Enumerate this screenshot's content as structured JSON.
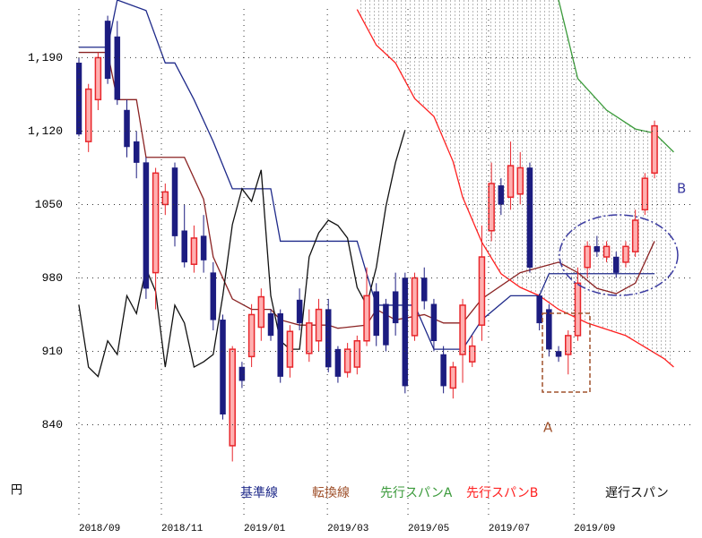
{
  "chart_data": {
    "type": "ichimoku",
    "y_unit": "円",
    "ylim": [
      767,
      1245
    ],
    "yticks": [
      840,
      910,
      980,
      1050,
      {
        "value": 1120,
        "label": "1,120"
      },
      {
        "value": 1190,
        "label": "1,190"
      }
    ],
    "xlim": [
      -0.28,
      64.2
    ],
    "xticks": [
      {
        "value": 0,
        "label": "2018/09"
      },
      {
        "value": 8.6,
        "label": "2018/11"
      },
      {
        "value": 17.2,
        "label": "2019/01"
      },
      {
        "value": 25.9,
        "label": "2019/03"
      },
      {
        "value": 34.3,
        "label": "2019/05"
      },
      {
        "value": 42.7,
        "label": "2019/07"
      },
      {
        "value": 51.6,
        "label": "2019/09"
      }
    ],
    "grid": true,
    "candles": {
      "up_color": "#e8262b",
      "down_color": "#1c1c80",
      "x": [
        0,
        1,
        2,
        3,
        4,
        5,
        6,
        7,
        8,
        9,
        10,
        11,
        12,
        13,
        14,
        15,
        16,
        17,
        18,
        19,
        20,
        21,
        22,
        23,
        24,
        25,
        26,
        27,
        28,
        29,
        30,
        31,
        32,
        33,
        34,
        35,
        36,
        37,
        38,
        39,
        40,
        41,
        42,
        43,
        44,
        45,
        46,
        47,
        48,
        49,
        50,
        51,
        52,
        53,
        54,
        55,
        56,
        57,
        58,
        59,
        60
      ],
      "open": [
        1185,
        1110,
        1150,
        1225,
        1210,
        1140,
        1110,
        1090,
        985,
        1050,
        1085,
        1025,
        993,
        1020,
        985,
        940,
        820,
        895,
        905,
        933,
        946,
        946,
        895,
        959,
        908,
        920,
        950,
        912,
        890,
        895,
        920,
        967,
        955,
        967,
        980,
        925,
        980,
        955,
        907,
        875,
        907,
        900,
        935,
        1025,
        1068,
        1057,
        1060,
        1085,
        963,
        950,
        910,
        907,
        925,
        990,
        1010,
        1000,
        1000,
        995,
        1005,
        1045,
        1080
      ],
      "high": [
        1190,
        1165,
        1195,
        1230,
        1225,
        1150,
        1120,
        1095,
        1085,
        1070,
        1090,
        1050,
        1030,
        1040,
        995,
        945,
        915,
        900,
        955,
        970,
        950,
        950,
        935,
        970,
        950,
        960,
        960,
        915,
        918,
        925,
        990,
        975,
        960,
        985,
        985,
        985,
        990,
        960,
        915,
        900,
        960,
        925,
        1030,
        1090,
        1075,
        1110,
        1100,
        1090,
        965,
        955,
        915,
        930,
        990,
        1015,
        1020,
        1015,
        1005,
        1015,
        1045,
        1080,
        1130
      ],
      "low": [
        1115,
        1100,
        1140,
        1165,
        1145,
        1095,
        1075,
        960,
        950,
        1040,
        1010,
        990,
        985,
        985,
        930,
        845,
        805,
        875,
        895,
        920,
        920,
        880,
        885,
        930,
        900,
        910,
        890,
        880,
        885,
        888,
        915,
        915,
        910,
        925,
        870,
        920,
        950,
        910,
        870,
        865,
        880,
        895,
        920,
        1015,
        1040,
        1045,
        1050,
        985,
        930,
        905,
        900,
        888,
        920,
        980,
        1000,
        995,
        980,
        990,
        1000,
        1040,
        1075
      ],
      "close": [
        1117,
        1160,
        1190,
        1170,
        1150,
        1105,
        1090,
        970,
        1080,
        1062,
        1020,
        995,
        1018,
        997,
        940,
        850,
        912,
        882,
        945,
        962,
        925,
        886,
        929,
        937,
        937,
        950,
        895,
        886,
        912,
        920,
        963,
        925,
        916,
        937,
        877,
        980,
        958,
        920,
        877,
        895,
        954,
        915,
        1000,
        1070,
        1050,
        1087,
        1085,
        990,
        937,
        912,
        905,
        925,
        975,
        1010,
        1005,
        1010,
        985,
        1010,
        1035,
        1075,
        1125
      ]
    },
    "series": [
      {
        "name": "基準線",
        "color": "#1f2a8a",
        "x": [
          0,
          3,
          4,
          7,
          9,
          10,
          12,
          14,
          16,
          20,
          21,
          29,
          30,
          31,
          35,
          37,
          40,
          42,
          45,
          48,
          49,
          60
        ],
        "values": [
          1200,
          1200,
          1245,
          1235,
          1185,
          1185,
          1150,
          1110,
          1065,
          1065,
          1015,
          1015,
          984,
          954,
          954,
          912,
          912,
          940,
          963,
          963,
          984,
          984
        ]
      },
      {
        "name": "転換線",
        "color": "#8b2323",
        "x": [
          0,
          3,
          4,
          6,
          7,
          11,
          13,
          14,
          16,
          18,
          20,
          21,
          23,
          26,
          27,
          30,
          31,
          33,
          36,
          38,
          40,
          42,
          46,
          48,
          50,
          52,
          54,
          56,
          58,
          60
        ],
        "values": [
          1195,
          1195,
          1150,
          1150,
          1095,
          1095,
          1055,
          1000,
          960,
          950,
          950,
          940,
          935,
          935,
          932,
          935,
          950,
          940,
          945,
          937,
          937,
          960,
          985,
          990,
          995,
          985,
          970,
          965,
          975,
          1015
        ]
      },
      {
        "name": "先行スパンA",
        "color": "#3a9a3a",
        "x": [
          50,
          52,
          55,
          58,
          60,
          62
        ],
        "values": [
          1245,
          1170,
          1140,
          1122,
          1118,
          1100
        ]
      },
      {
        "name": "先行スパンB",
        "color": "#ff2020",
        "x": [
          29,
          31,
          33,
          35,
          37,
          39,
          40,
          42,
          44,
          46,
          48,
          50,
          53,
          57,
          61,
          62
        ],
        "values": [
          1236,
          1202,
          1185,
          1151,
          1134,
          1091,
          1057,
          1014,
          984,
          971,
          963,
          950,
          937,
          925,
          903,
          895
        ]
      },
      {
        "name": "遅行スパン",
        "color": "#111111",
        "x": [
          0,
          1,
          2,
          3,
          4,
          5,
          6,
          7,
          8,
          9,
          10,
          11,
          12,
          13,
          14,
          15,
          16,
          17,
          18,
          19,
          20,
          21,
          22,
          23,
          24,
          25,
          26,
          27,
          28,
          29,
          30,
          31,
          32,
          33,
          34
        ],
        "values": [
          954,
          895,
          886,
          920,
          907,
          963,
          946,
          989,
          967,
          895,
          954,
          937,
          895,
          900,
          907,
          963,
          1031,
          1065,
          1053,
          1083,
          963,
          920,
          912,
          912,
          1000,
          1023,
          1035,
          1030,
          1018,
          971,
          954,
          990,
          1048,
          1090,
          1121
        ]
      }
    ],
    "annotations": [
      {
        "text": "A",
        "color": "#a0522d"
      },
      {
        "text": "B",
        "color": "#3a3aa0"
      }
    ]
  }
}
